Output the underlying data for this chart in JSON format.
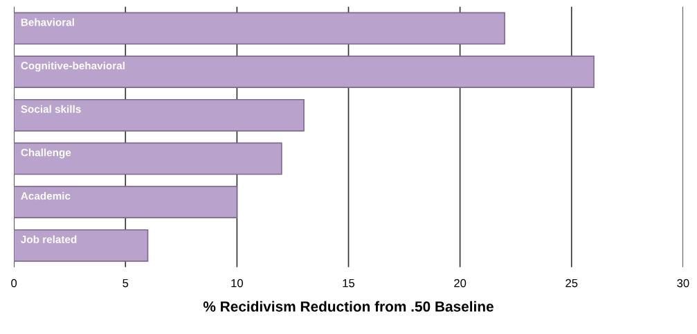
{
  "chart_data": {
    "type": "bar",
    "orientation": "horizontal",
    "xlabel": "% Recidivism Reduction from .50 Baseline",
    "categories": [
      "Behavioral",
      "Cognitive-behavioral",
      "Social skills",
      "Challenge",
      "Academic",
      "Job related"
    ],
    "values": [
      22,
      26,
      13,
      12,
      10,
      6
    ],
    "color": "#b9a2cc",
    "xlim": [
      0,
      30
    ],
    "xticks": [
      0,
      5,
      10,
      15,
      20,
      25,
      30
    ],
    "grid": "x"
  }
}
